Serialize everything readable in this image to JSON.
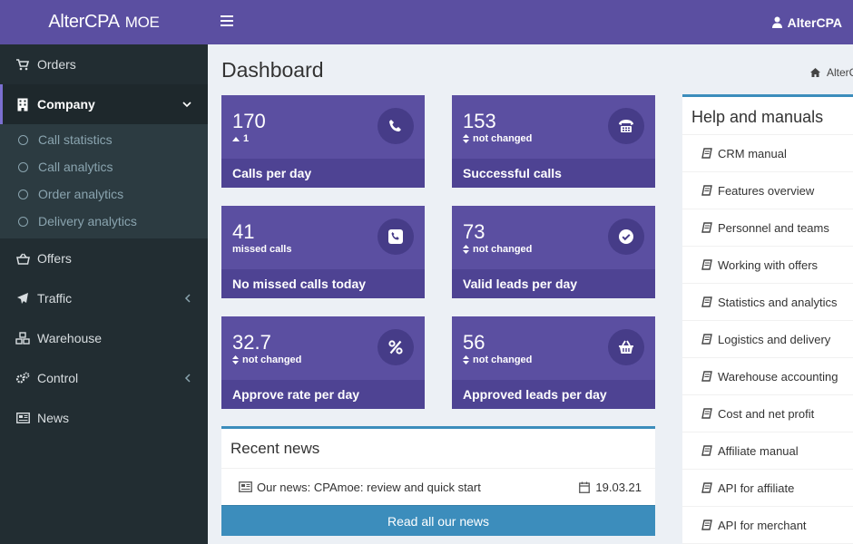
{
  "brand": {
    "name": "AlterCPA",
    "suffix": "MOE"
  },
  "header": {
    "user": "AlterCPA"
  },
  "sidebar": {
    "items": [
      {
        "label": "Orders",
        "icon": "cart-icon"
      },
      {
        "label": "Company",
        "icon": "building-icon"
      },
      {
        "label": "Offers",
        "icon": "basket-icon"
      },
      {
        "label": "Traffic",
        "icon": "paper-plane-icon"
      },
      {
        "label": "Warehouse",
        "icon": "cubes-icon"
      },
      {
        "label": "Control",
        "icon": "cogs-icon"
      },
      {
        "label": "News",
        "icon": "newspaper-icon"
      }
    ],
    "company_sub": [
      "Call statistics",
      "Call analytics",
      "Order analytics",
      "Delivery analytics"
    ]
  },
  "page": {
    "title": "Dashboard",
    "breadcrumb": "AlterCPA"
  },
  "tiles": [
    {
      "value": "170",
      "sub": "1",
      "label": "Calls per day",
      "icon": "phone-icon"
    },
    {
      "value": "153",
      "sub": "not changed",
      "label": "Successful calls",
      "icon": "fax-icon"
    },
    {
      "value": "41",
      "sub": "missed calls",
      "label": "No missed calls today",
      "icon": "phone-square-icon"
    },
    {
      "value": "73",
      "sub": "not changed",
      "label": "Valid leads per day",
      "icon": "check-circle-icon"
    },
    {
      "value": "32.7",
      "sub": "not changed",
      "label": "Approve rate per day",
      "icon": "percent-icon"
    },
    {
      "value": "56",
      "sub": "not changed",
      "label": "Approved leads per day",
      "icon": "basket-icon"
    }
  ],
  "news": {
    "title": "Recent news",
    "item": "Our news: CPAmoe: review and quick start",
    "date": "19.03.21",
    "button": "Read all our news"
  },
  "help": {
    "title": "Help and manuals",
    "items": [
      "CRM manual",
      "Features overview",
      "Personnel and teams",
      "Working with offers",
      "Statistics and analytics",
      "Logistics and delivery",
      "Warehouse accounting",
      "Cost and net profit",
      "Affiliate manual",
      "API for affiliate",
      "API for merchant"
    ]
  },
  "colors": {
    "primary": "#5b4fa1",
    "tile_footer": "#4e4393",
    "sidebar": "#222d32",
    "accent_blue": "#3c8dbc"
  }
}
